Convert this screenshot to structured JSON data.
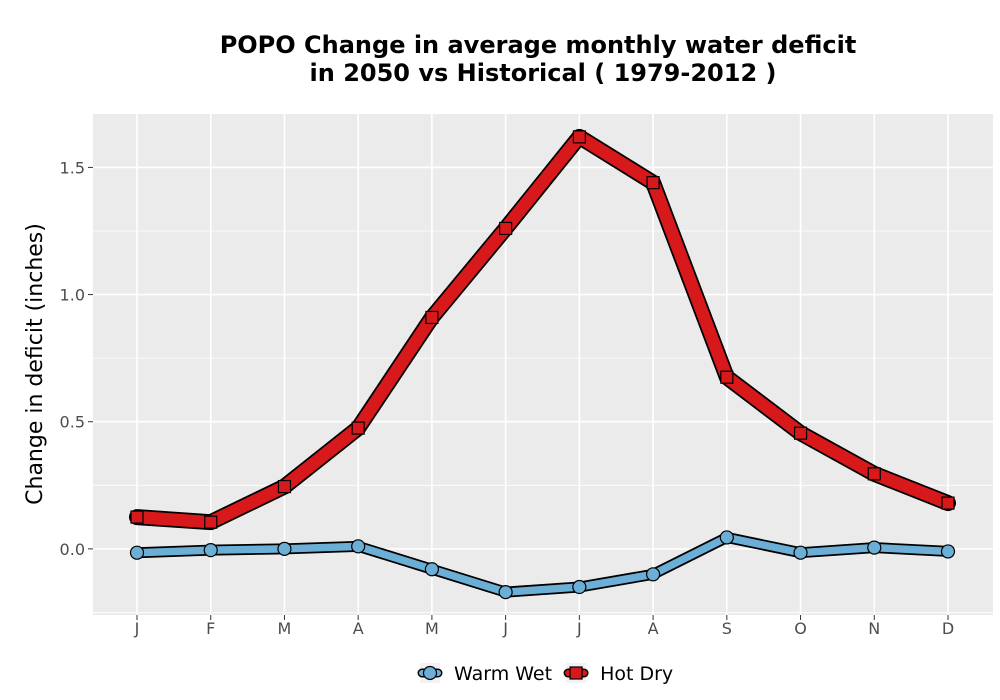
{
  "chart_data": {
    "type": "line",
    "title_line1": "POPO  Change in average monthly water deficit",
    "title_line2": "in 2050 vs Historical ( 1979-2012 )",
    "xlabel": "",
    "ylabel": "Change in deficit (inches)",
    "categories": [
      "J",
      "F",
      "M",
      "A",
      "M",
      "J",
      "J",
      "A",
      "S",
      "O",
      "N",
      "D"
    ],
    "ylim": [
      -0.26,
      1.71
    ],
    "yticks": [
      0.0,
      0.5,
      1.0,
      1.5
    ],
    "ytick_labels": [
      "0.0",
      "0.5",
      "1.0",
      "1.5"
    ],
    "grid": true,
    "legend_position": "bottom",
    "series": [
      {
        "name": "Warm Wet",
        "marker": "circle",
        "color": "#6BAED6",
        "values": [
          -0.015,
          -0.005,
          0.0,
          0.01,
          -0.08,
          -0.17,
          -0.15,
          -0.1,
          0.045,
          -0.015,
          0.005,
          -0.01
        ]
      },
      {
        "name": "Hot Dry",
        "marker": "square",
        "color": "#D7191C",
        "values": [
          0.125,
          0.105,
          0.245,
          0.475,
          0.91,
          1.26,
          1.62,
          1.44,
          0.675,
          0.455,
          0.295,
          0.18
        ]
      }
    ]
  }
}
